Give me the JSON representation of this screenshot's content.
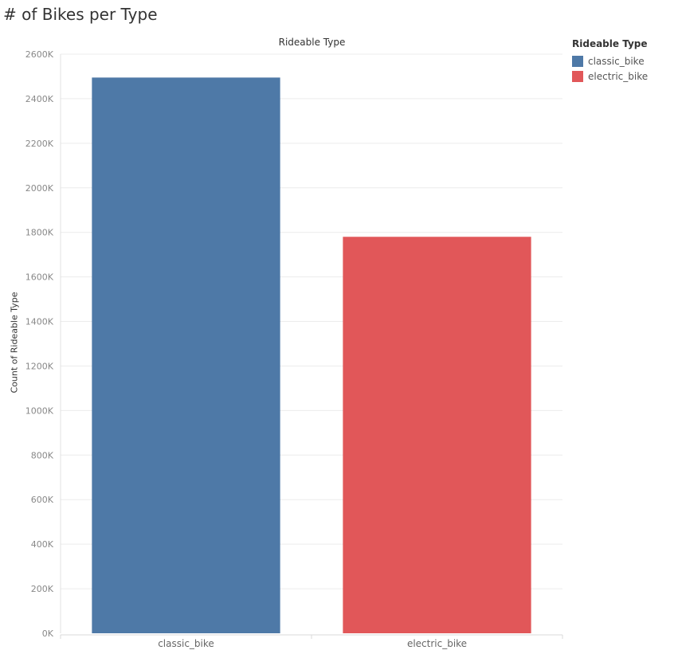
{
  "page": {
    "title": "# of Bikes per Type"
  },
  "chart_data": {
    "type": "bar",
    "title": "# of Bikes per Type",
    "header": "Rideable Type",
    "xlabel": "",
    "ylabel": "Count of Rideable Type",
    "categories": [
      "classic_bike",
      "electric_bike"
    ],
    "values": [
      2495000,
      1780000
    ],
    "colors": [
      "#4e79a7",
      "#e15759"
    ],
    "ylim": [
      0,
      2600000
    ],
    "yticks": [
      0,
      200000,
      400000,
      600000,
      800000,
      1000000,
      1200000,
      1400000,
      1600000,
      1800000,
      2000000,
      2200000,
      2400000,
      2600000
    ],
    "ytick_labels": [
      "0K",
      "200K",
      "400K",
      "600K",
      "800K",
      "1000K",
      "1200K",
      "1400K",
      "1600K",
      "1800K",
      "2000K",
      "2200K",
      "2400K",
      "2600K"
    ],
    "grid": true,
    "legend": {
      "title": "Rideable Type",
      "placement": "right",
      "entries": [
        {
          "label": "classic_bike",
          "color": "#4e79a7"
        },
        {
          "label": "electric_bike",
          "color": "#e15759"
        }
      ]
    }
  }
}
